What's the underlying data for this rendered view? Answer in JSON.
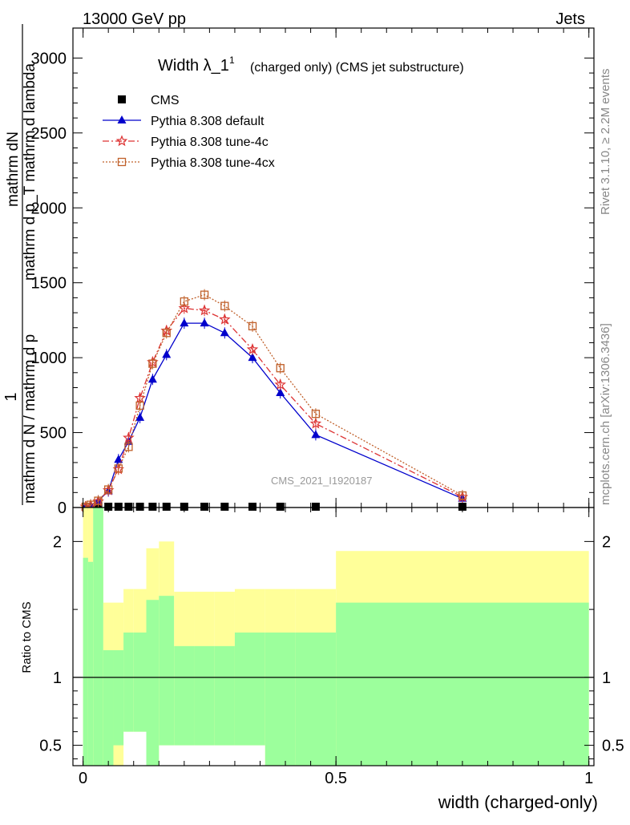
{
  "header": {
    "energy_label": "13000 GeV pp",
    "process_label": "Jets"
  },
  "side_labels": {
    "rivet": "Rivet 3.1.10, ≥ 2.2M events",
    "mcplots": "mcplots.cern.ch [arXiv:1306.3436]"
  },
  "chart_data": [
    {
      "type": "line",
      "title": "Width λ_1",
      "title_sup": "1",
      "subtitle": "(charged only) (CMS jet substructure)",
      "watermark": "CMS_2021_I1920187",
      "ylabel_top": "1",
      "ylabel_num": "mathrm d N / mathrm d p",
      "ylabel_den": "mathrm d",
      "ylabel_extra": "mathrm d",
      "xlim": [
        -0.02,
        1.01
      ],
      "ylim": [
        0,
        3200
      ],
      "yticks": [
        0,
        500,
        1000,
        1500,
        2000,
        2500,
        3000
      ],
      "ytick_labels": [
        "0",
        "500",
        "1000",
        "1500",
        "2000",
        "2500",
        "3000"
      ],
      "legend_position": "top-left",
      "x": [
        0.005,
        0.015,
        0.03,
        0.05,
        0.07,
        0.09,
        0.1125,
        0.1375,
        0.165,
        0.2,
        0.24,
        0.28,
        0.335,
        0.39,
        0.46,
        0.75
      ],
      "series": [
        {
          "name": "CMS",
          "color": "#000000",
          "marker": "square-filled",
          "values": [
            0,
            0,
            0,
            0,
            0,
            0,
            0,
            0,
            0,
            0,
            0,
            0,
            0,
            0,
            0,
            0
          ]
        },
        {
          "name": "Pythia 8.308 default",
          "color": "#0000cc",
          "marker": "triangle-filled",
          "line": "solid",
          "values": [
            5,
            15,
            45,
            110,
            320,
            440,
            600,
            855,
            1020,
            1230,
            1230,
            1165,
            1000,
            765,
            485,
            60
          ]
        },
        {
          "name": "Pythia 8.308 tune-4c",
          "color": "#dd3333",
          "marker": "star",
          "line": "dashdot",
          "values": [
            5,
            15,
            40,
            115,
            255,
            465,
            730,
            970,
            1180,
            1330,
            1315,
            1255,
            1055,
            820,
            560,
            70
          ]
        },
        {
          "name": "Pythia 8.308 tune-4cx",
          "color": "#c0602a",
          "marker": "square-open",
          "line": "dotted",
          "values": [
            5,
            18,
            45,
            120,
            260,
            405,
            680,
            960,
            1165,
            1375,
            1420,
            1345,
            1210,
            930,
            625,
            80
          ]
        }
      ]
    },
    {
      "type": "area",
      "ylabel": "Ratio to CMS",
      "xlabel": "width (charged-only)",
      "xlim": [
        -0.02,
        1.01
      ],
      "ylim": [
        0.35,
        2.25
      ],
      "xticks": [
        0,
        0.5,
        1
      ],
      "xtick_labels": [
        "0",
        "0.5",
        "1"
      ],
      "yticks": [
        0.5,
        1,
        2
      ],
      "ytick_labels": [
        "0.5",
        "1",
        "2"
      ],
      "bin_edges": [
        0,
        0.01,
        0.02,
        0.04,
        0.06,
        0.08,
        0.1,
        0.125,
        0.15,
        0.18,
        0.22,
        0.26,
        0.3,
        0.36,
        0.42,
        0.5,
        1.0
      ],
      "stat_band": {
        "color": "#9cff9c",
        "lo": [
          0.3,
          0.3,
          0.3,
          0.3,
          0.5,
          0.6,
          0.6,
          0.35,
          0.5,
          0.5,
          0.5,
          0.5,
          0.5,
          0.3,
          0.3,
          0.3
        ],
        "hi": [
          1.88,
          1.85,
          2.3,
          1.2,
          1.2,
          1.33,
          1.33,
          1.57,
          1.6,
          1.23,
          1.23,
          1.23,
          1.33,
          1.33,
          1.33,
          1.55
        ]
      },
      "syst_band": {
        "color": "#ffff99",
        "lo": [
          0.3,
          0.3,
          0.3,
          0.3,
          0.3,
          0.6,
          0.6,
          0.35,
          0.5,
          0.5,
          0.5,
          0.5,
          0.5,
          0.3,
          0.3,
          0.3
        ],
        "hi": [
          2.25,
          2.25,
          2.3,
          1.55,
          1.55,
          1.65,
          1.65,
          1.95,
          2.0,
          1.63,
          1.63,
          1.63,
          1.65,
          1.65,
          1.65,
          1.93
        ]
      }
    }
  ]
}
